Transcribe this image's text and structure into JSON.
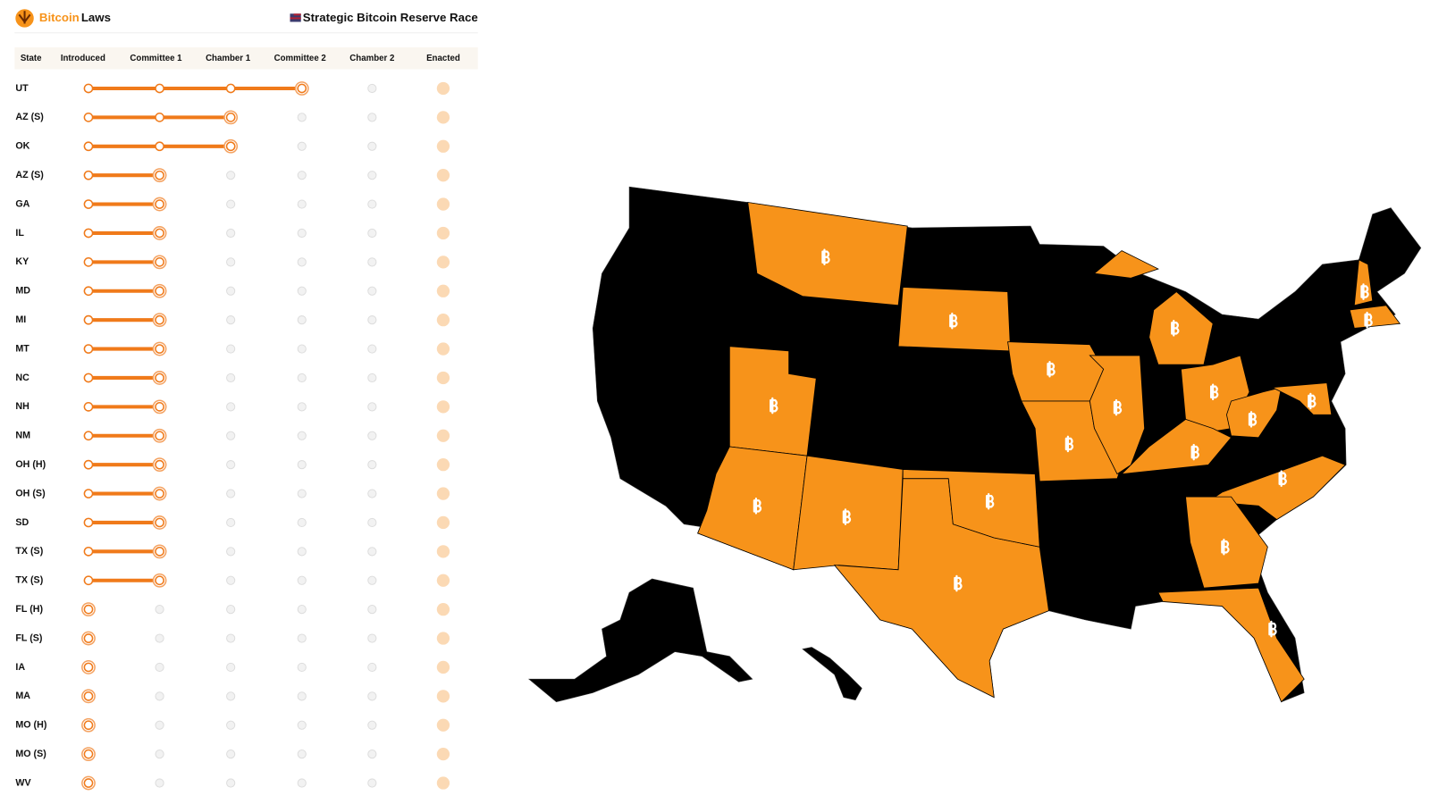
{
  "header": {
    "brand_accent": "Bitcoin",
    "brand": "Laws",
    "title": "Strategic Bitcoin Reserve Race"
  },
  "table": {
    "columns": [
      "State",
      "Introduced",
      "Committee 1",
      "Chamber 1",
      "Committee 2",
      "Chamber 2",
      "Enacted"
    ],
    "rows": [
      {
        "state": "UT",
        "stage": 3
      },
      {
        "state": "AZ (S)",
        "stage": 2
      },
      {
        "state": "OK",
        "stage": 2
      },
      {
        "state": "AZ (S)",
        "stage": 1
      },
      {
        "state": "GA",
        "stage": 1
      },
      {
        "state": "IL",
        "stage": 1
      },
      {
        "state": "KY",
        "stage": 1
      },
      {
        "state": "MD",
        "stage": 1
      },
      {
        "state": "MI",
        "stage": 1
      },
      {
        "state": "MT",
        "stage": 1
      },
      {
        "state": "NC",
        "stage": 1
      },
      {
        "state": "NH",
        "stage": 1
      },
      {
        "state": "NM",
        "stage": 1
      },
      {
        "state": "OH (H)",
        "stage": 1
      },
      {
        "state": "OH (S)",
        "stage": 1
      },
      {
        "state": "SD",
        "stage": 1
      },
      {
        "state": "TX (S)",
        "stage": 1
      },
      {
        "state": "TX (S)",
        "stage": 1
      },
      {
        "state": "FL (H)",
        "stage": 0
      },
      {
        "state": "FL (S)",
        "stage": 0
      },
      {
        "state": "IA",
        "stage": 0
      },
      {
        "state": "MA",
        "stage": 0
      },
      {
        "state": "MO (H)",
        "stage": 0
      },
      {
        "state": "MO (S)",
        "stage": 0
      },
      {
        "state": "WV",
        "stage": 0
      }
    ]
  }
}
